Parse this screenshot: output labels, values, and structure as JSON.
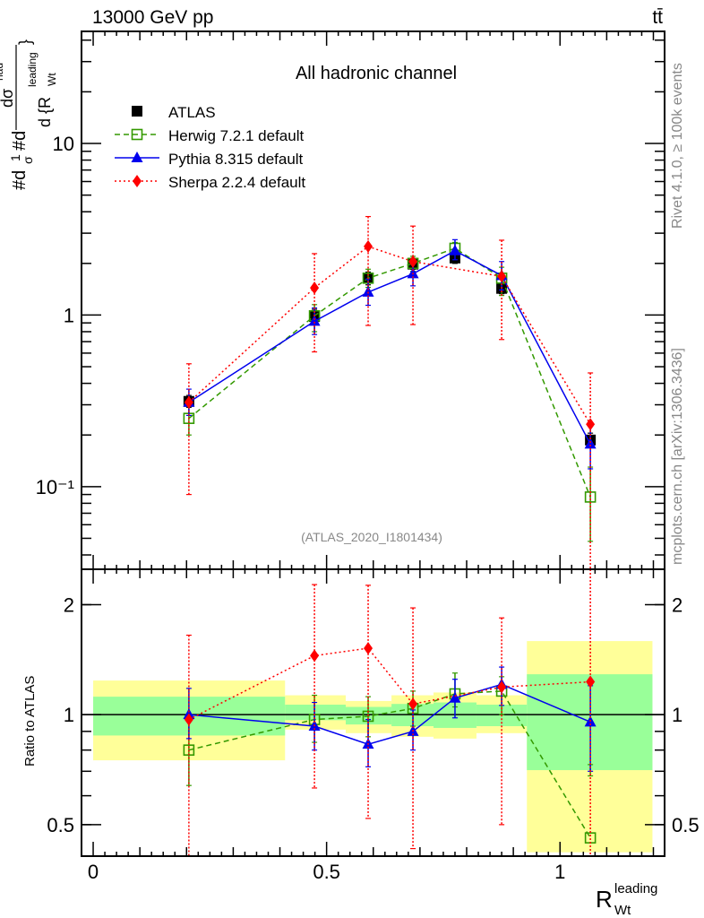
{
  "header": {
    "left": "13000 GeV pp",
    "right": "tt̄"
  },
  "side_text": {
    "rivet": "Rivet 4.1.0, ≥ 100k events",
    "mcplots": "mcplots.cern.ch [arXiv:1306.3436]"
  },
  "chart_data": [
    {
      "type": "line",
      "panel": "main",
      "title": "All hadronic channel",
      "reference": "(ATLAS_2020_I1801434)",
      "ylabel": "#d1/σ#d dσ^{had}/d{R_{Wt}^{leading}}",
      "ylabel_parts": {
        "numer": "#d",
        "frac_num": "1",
        "frac_den": "σ",
        "mid": "#d",
        "top": "dσ",
        "top_sup": "had",
        "bottom": "d {R",
        "bottom_sub": "Wt",
        "bottom_sup": "leading",
        "close": "}"
      },
      "yscale": "log",
      "ylim": [
        0.033,
        45
      ],
      "xlim": [
        -0.025,
        1.224
      ],
      "ytick_labels": [
        "10",
        "1",
        "10⁻¹"
      ],
      "ytick_values": [
        10,
        1,
        0.1
      ],
      "legend_position": "top-left",
      "x": [
        0.205,
        0.474,
        0.589,
        0.685,
        0.775,
        0.875,
        1.065
      ],
      "series": [
        {
          "name": "ATLAS",
          "color": "#000000",
          "marker": "square-filled",
          "line": "none",
          "values": [
            0.314,
            0.98,
            1.64,
            1.98,
            2.15,
            1.43,
            0.187
          ],
          "err_low": [
            0.29,
            0.88,
            1.5,
            1.85,
            2.0,
            1.33,
            0.17
          ],
          "err_high": [
            0.34,
            1.08,
            1.78,
            2.1,
            2.3,
            1.53,
            0.205
          ]
        },
        {
          "name": "Herwig 7.2.1 default",
          "color": "#339900",
          "marker": "square-open",
          "line": "dashed",
          "values": [
            0.25,
            0.99,
            1.64,
            2.0,
            2.45,
            1.64,
            0.087
          ],
          "err_low": [
            0.2,
            0.8,
            1.45,
            1.8,
            2.3,
            1.3,
            0.048
          ],
          "err_high": [
            0.3,
            1.15,
            1.85,
            2.2,
            2.65,
            1.9,
            0.13
          ]
        },
        {
          "name": "Pythia 8.315 default",
          "color": "#0000ee",
          "marker": "triangle",
          "line": "solid",
          "values": [
            0.31,
            0.92,
            1.36,
            1.74,
            2.37,
            1.7,
            0.177
          ],
          "err_low": [
            0.26,
            0.77,
            1.14,
            1.48,
            2.1,
            1.4,
            0.127
          ],
          "err_high": [
            0.37,
            1.1,
            1.62,
            2.05,
            2.75,
            2.05,
            0.225
          ]
        },
        {
          "name": "Sherpa 2.2.4 default",
          "color": "#ff0000",
          "marker": "diamond",
          "line": "dotted",
          "values": [
            0.31,
            1.44,
            2.51,
            2.05,
            null,
            1.68,
            0.231
          ],
          "err_low": [
            0.09,
            0.61,
            0.87,
            0.88,
            null,
            0.72,
            0.033
          ],
          "err_high": [
            0.52,
            2.28,
            3.75,
            3.3,
            null,
            2.73,
            0.46
          ]
        }
      ]
    },
    {
      "type": "line",
      "panel": "ratio",
      "ylabel": "Ratio to ATLAS",
      "xlabel": "R_{Wt}^{leading}",
      "xlabel_parts": {
        "base": "R",
        "sub": "Wt",
        "sup": "leading"
      },
      "yscale": "log",
      "ylim": [
        0.41,
        2.5
      ],
      "xlim": [
        -0.025,
        1.224
      ],
      "ytick_labels": [
        "2",
        "1",
        "0.5"
      ],
      "ytick_values": [
        2,
        1,
        0.5
      ],
      "xtick_labels": [
        "0",
        "0.5",
        "1"
      ],
      "xtick_values": [
        0,
        0.5,
        1
      ],
      "bands": {
        "edges": [
          0.0,
          0.411,
          0.541,
          0.639,
          0.729,
          0.821,
          0.929,
          1.198
        ],
        "outer_color": "#ffff99",
        "inner_color": "#99ff99",
        "outer_low": [
          0.75,
          0.91,
          0.89,
          0.87,
          0.86,
          0.89,
          0.42
        ],
        "outer_high": [
          1.24,
          1.13,
          1.09,
          1.13,
          1.15,
          1.13,
          1.59
        ],
        "inner_low": [
          0.877,
          0.966,
          0.94,
          0.93,
          0.92,
          0.93,
          0.705
        ],
        "inner_high": [
          1.12,
          1.065,
          1.05,
          1.07,
          1.08,
          1.065,
          1.29
        ]
      },
      "x": [
        0.205,
        0.474,
        0.589,
        0.685,
        0.775,
        0.875,
        1.065
      ],
      "series": [
        {
          "name": "Herwig 7.2.1 default",
          "color": "#339900",
          "marker": "square-open",
          "line": "dashed",
          "values": [
            0.8,
            0.97,
            0.99,
            1.04,
            1.14,
            1.16,
            0.46
          ],
          "err_low": [
            0.64,
            0.84,
            0.87,
            0.93,
            1.05,
            1.0,
            0.68
          ],
          "err_high": [
            0.97,
            1.13,
            1.12,
            1.16,
            1.3,
            1.27,
            0.73
          ]
        },
        {
          "name": "Pythia 8.315 default",
          "color": "#0000ee",
          "marker": "triangle",
          "line": "solid",
          "values": [
            1.0,
            0.93,
            0.83,
            0.9,
            1.11,
            1.21,
            0.955
          ],
          "err_low": [
            0.86,
            0.8,
            0.72,
            0.8,
            0.98,
            1.06,
            0.7
          ],
          "err_high": [
            1.18,
            1.08,
            0.97,
            1.03,
            1.25,
            1.35,
            1.2
          ]
        },
        {
          "name": "Sherpa 2.2.4 default",
          "color": "#ff0000",
          "marker": "diamond",
          "line": "dotted",
          "values": [
            0.97,
            1.45,
            1.52,
            1.07,
            null,
            1.19,
            1.23
          ],
          "err_low": [
            0.3,
            0.63,
            0.52,
            0.43,
            null,
            0.5,
            0.3
          ],
          "err_high": [
            1.65,
            2.27,
            2.26,
            1.96,
            null,
            1.84,
            2.5
          ]
        }
      ]
    }
  ]
}
